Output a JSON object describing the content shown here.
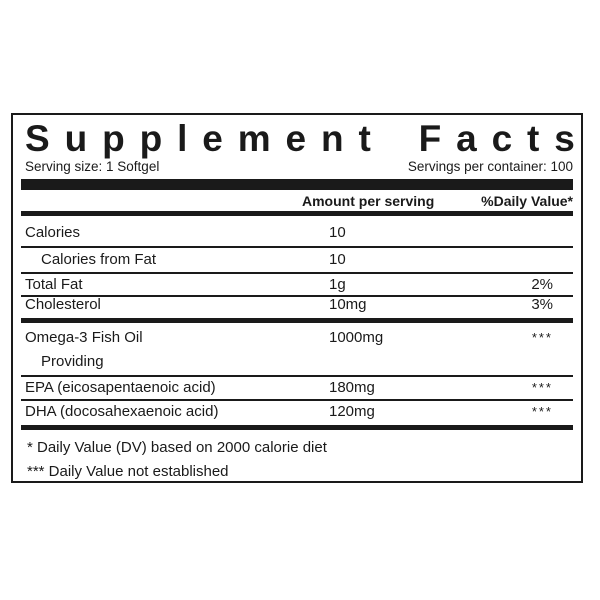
{
  "panel": {
    "title_word1": "Supplement",
    "title_word2": "Facts",
    "serving_size": "Serving size: 1 Softgel",
    "servings_per_container": "Servings per container: 100",
    "header_amount": "Amount per serving",
    "header_dv": "%Daily Value*"
  },
  "rows": [
    {
      "name": "Calories",
      "amount": "10",
      "dv": ""
    },
    {
      "name": "Calories from Fat",
      "amount": "10",
      "dv": ""
    },
    {
      "name": "Total Fat",
      "amount": "1g",
      "dv": "2%"
    },
    {
      "name": "Cholesterol",
      "amount": "10mg",
      "dv": "3%"
    },
    {
      "name": "Omega-3 Fish Oil",
      "amount": "1000mg",
      "dv": "***"
    },
    {
      "name": "Providing",
      "amount": "",
      "dv": ""
    },
    {
      "name": "EPA (eicosapentaenoic acid)",
      "amount": "180mg",
      "dv": "***"
    },
    {
      "name": "DHA (docosahexaenoic acid)",
      "amount": "120mg",
      "dv": "***"
    }
  ],
  "footnotes": {
    "dv_note": "* Daily Value (DV) based on 2000 calorie diet",
    "not_established": "*** Daily Value not established"
  }
}
